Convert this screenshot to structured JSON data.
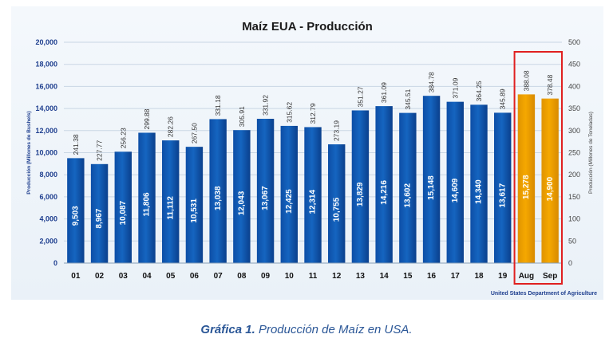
{
  "chart_data": {
    "type": "bar",
    "title": "Maíz EUA - Producción",
    "ylabel": "Producción (Millones de Bushels)",
    "ylabel_right": "Producción (Millones de Toneladas)",
    "ylim": [
      0,
      20000
    ],
    "ylim_right": [
      0,
      500
    ],
    "yticks": [
      "0",
      "2,000",
      "4,000",
      "6,000",
      "8,000",
      "10,000",
      "12,000",
      "14,000",
      "16,000",
      "18,000",
      "20,000"
    ],
    "yticks_right": [
      "0",
      "50",
      "100",
      "150",
      "200",
      "250",
      "300",
      "350",
      "400",
      "450",
      "500"
    ],
    "categories": [
      "01",
      "02",
      "03",
      "04",
      "05",
      "06",
      "07",
      "08",
      "09",
      "10",
      "11",
      "12",
      "13",
      "14",
      "15",
      "16",
      "17",
      "18",
      "19",
      "Aug",
      "Sep"
    ],
    "values": [
      9503,
      8967,
      10087,
      11806,
      11112,
      10531,
      13038,
      12043,
      13067,
      12425,
      12314,
      10755,
      13829,
      14216,
      13602,
      15148,
      14609,
      14340,
      13617,
      15278,
      14900
    ],
    "value_labels": [
      "9,503",
      "8,967",
      "10,087",
      "11,806",
      "11,112",
      "10,531",
      "13,038",
      "12,043",
      "13,067",
      "12,425",
      "12,314",
      "10,755",
      "13,829",
      "14,216",
      "13,602",
      "15,148",
      "14,609",
      "14,340",
      "13,617",
      "15,278",
      "14,900"
    ],
    "tonnes_labels": [
      "241.38",
      "227.77",
      "256.23",
      "299.88",
      "282.26",
      "267.50",
      "331.18",
      "305.91",
      "331.92",
      "315.62",
      "312.79",
      "273.19",
      "351.27",
      "361.09",
      "345.51",
      "384.78",
      "371.09",
      "364.25",
      "345.89",
      "388.08",
      "378.48"
    ],
    "highlighted": [
      "Aug",
      "Sep"
    ],
    "source": "United States Department of Agriculture",
    "grid": true,
    "colors": {
      "bar": "#1565c0",
      "bar_highlight": "#f5a800",
      "highlight_box": "#e02020",
      "axis_text": "#1f3f8f"
    }
  },
  "caption": {
    "lead": "Gráfica 1.",
    "rest": "Producción de Maíz en USA."
  }
}
